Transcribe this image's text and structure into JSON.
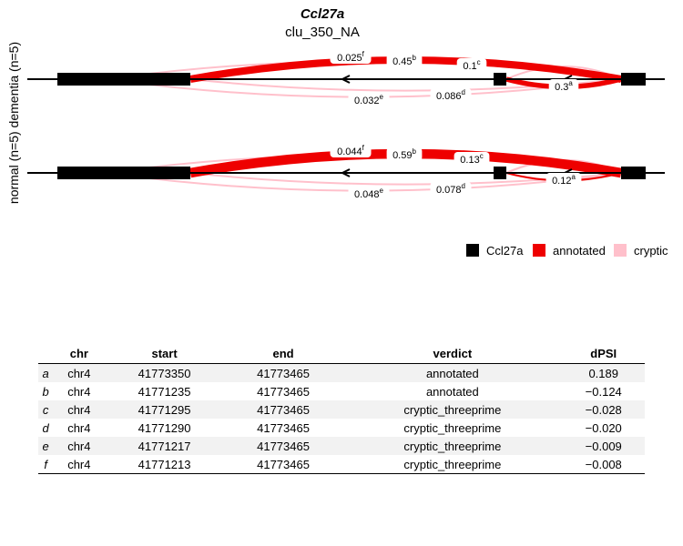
{
  "title": "Ccl27a",
  "subtitle": "clu_350_NA",
  "y_axis_label": "normal (n=5)  dementia (n=5)",
  "legend": [
    {
      "label": "Ccl27a",
      "color": "#000000"
    },
    {
      "label": "annotated",
      "color": "#ee0000"
    },
    {
      "label": "cryptic",
      "color": "#ffc0cb"
    }
  ],
  "panels": [
    {
      "name": "dementia",
      "junctions": [
        {
          "id": "f",
          "value": "0.025",
          "type": "cryptic"
        },
        {
          "id": "b",
          "value": "0.45",
          "type": "annotated"
        },
        {
          "id": "c",
          "value": "0.1",
          "type": "cryptic"
        },
        {
          "id": "a",
          "value": "0.3",
          "type": "annotated"
        },
        {
          "id": "e",
          "value": "0.032",
          "type": "cryptic"
        },
        {
          "id": "d",
          "value": "0.086",
          "type": "cryptic"
        }
      ]
    },
    {
      "name": "normal",
      "junctions": [
        {
          "id": "f",
          "value": "0.044",
          "type": "cryptic"
        },
        {
          "id": "b",
          "value": "0.59",
          "type": "annotated"
        },
        {
          "id": "c",
          "value": "0.13",
          "type": "cryptic"
        },
        {
          "id": "a",
          "value": "0.12",
          "type": "annotated"
        },
        {
          "id": "e",
          "value": "0.048",
          "type": "cryptic"
        },
        {
          "id": "d",
          "value": "0.078",
          "type": "cryptic"
        }
      ]
    }
  ],
  "table": {
    "headers": [
      "",
      "chr",
      "start",
      "end",
      "verdict",
      "dPSI"
    ],
    "rows": [
      [
        "a",
        "chr4",
        "41773350",
        "41773465",
        "annotated",
        "0.189"
      ],
      [
        "b",
        "chr4",
        "41771235",
        "41773465",
        "annotated",
        "−0.124"
      ],
      [
        "c",
        "chr4",
        "41771295",
        "41773465",
        "cryptic_threeprime",
        "−0.028"
      ],
      [
        "d",
        "chr4",
        "41771290",
        "41773465",
        "cryptic_threeprime",
        "−0.020"
      ],
      [
        "e",
        "chr4",
        "41771217",
        "41773465",
        "cryptic_threeprime",
        "−0.009"
      ],
      [
        "f",
        "chr4",
        "41771213",
        "41773465",
        "cryptic_threeprime",
        "−0.008"
      ]
    ]
  }
}
